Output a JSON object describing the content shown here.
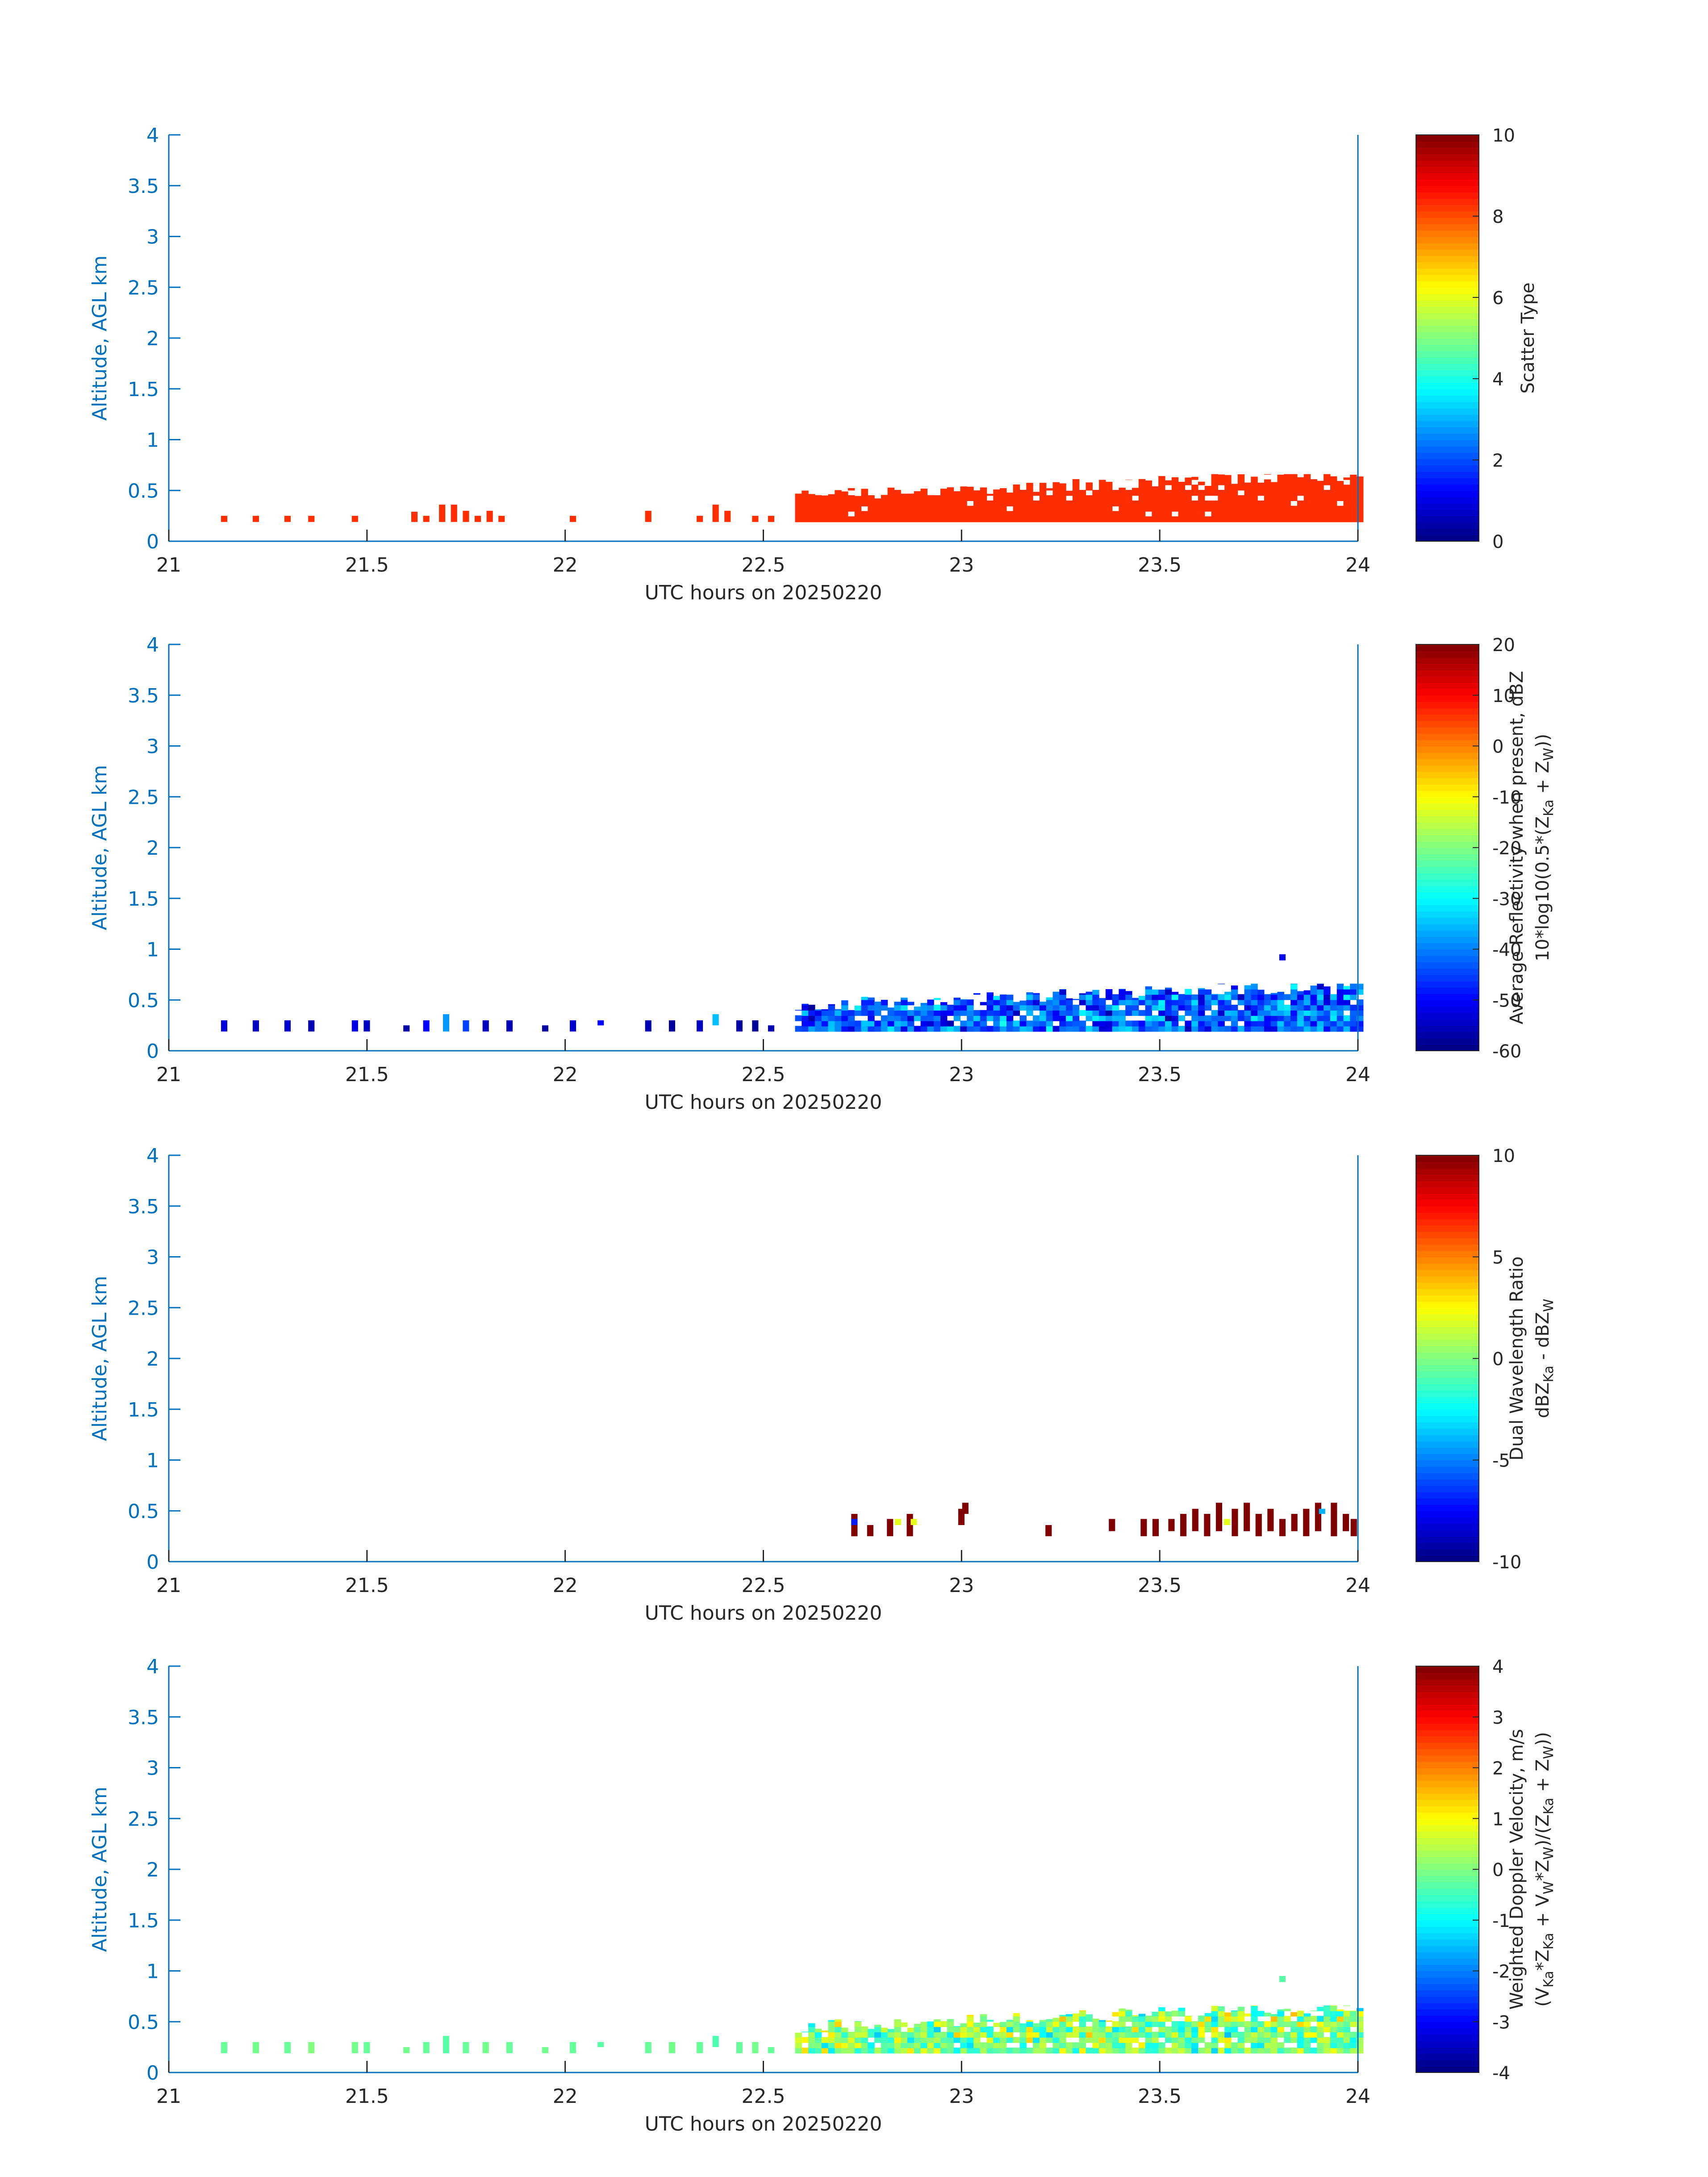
{
  "chart_data": [
    {
      "type": "heatmap",
      "xlabel": "UTC hours on 20250220",
      "ylabel": "Altitude, AGL km",
      "xlim": [
        21,
        24
      ],
      "ylim": [
        0,
        4
      ],
      "xticks": [
        "21",
        "21.5",
        "22",
        "22.5",
        "23",
        "23.5",
        "24"
      ],
      "yticks": [
        "0",
        "0.5",
        "1",
        "1.5",
        "2",
        "2.5",
        "3",
        "3.5",
        "4"
      ],
      "colorbar": {
        "label_lines": [
          "Scatter Type"
        ],
        "min": 0,
        "max": 10,
        "ticks": [
          "0",
          "2",
          "4",
          "6",
          "8",
          "10"
        ]
      },
      "fields": [
        {
          "t": 21.14,
          "z0": 0.19,
          "z1": 0.25,
          "v": 8.3
        },
        {
          "t": 21.22,
          "z0": 0.19,
          "z1": 0.25,
          "v": 8.3
        },
        {
          "t": 21.3,
          "z0": 0.19,
          "z1": 0.25,
          "v": 8.3
        },
        {
          "t": 21.36,
          "z0": 0.19,
          "z1": 0.25,
          "v": 8.3
        },
        {
          "t": 21.47,
          "z0": 0.19,
          "z1": 0.25,
          "v": 8.3
        },
        {
          "t": 21.62,
          "z0": 0.19,
          "z1": 0.29,
          "v": 8.3
        },
        {
          "t": 21.65,
          "z0": 0.19,
          "z1": 0.25,
          "v": 8.3
        },
        {
          "t": 21.69,
          "z0": 0.19,
          "z1": 0.36,
          "v": 8.3
        },
        {
          "t": 21.72,
          "z0": 0.19,
          "z1": 0.36,
          "v": 8.3
        },
        {
          "t": 21.75,
          "z0": 0.19,
          "z1": 0.3,
          "v": 8.3
        },
        {
          "t": 21.78,
          "z0": 0.19,
          "z1": 0.25,
          "v": 8.3
        },
        {
          "t": 21.81,
          "z0": 0.19,
          "z1": 0.3,
          "v": 8.3
        },
        {
          "t": 21.84,
          "z0": 0.19,
          "z1": 0.25,
          "v": 8.3
        },
        {
          "t": 22.02,
          "z0": 0.19,
          "z1": 0.25,
          "v": 8.3
        },
        {
          "t": 22.21,
          "z0": 0.19,
          "z1": 0.3,
          "v": 8.3
        },
        {
          "t": 22.34,
          "z0": 0.19,
          "z1": 0.25,
          "v": 8.3
        },
        {
          "t": 22.38,
          "z0": 0.19,
          "z1": 0.36,
          "v": 8.3
        },
        {
          "t": 22.41,
          "z0": 0.19,
          "z1": 0.3,
          "v": 8.3
        },
        {
          "t": 22.48,
          "z0": 0.19,
          "z1": 0.25,
          "v": 8.3
        },
        {
          "t": 22.52,
          "z0": 0.19,
          "z1": 0.25,
          "v": 8.3
        }
      ],
      "dense_region": {
        "t0": 22.58,
        "t1": 24.0,
        "z_base": 0.19,
        "top_min": 0.36,
        "top_max": 0.66,
        "v_min": 8.3,
        "v_max": 8.3
      }
    },
    {
      "type": "heatmap",
      "xlabel": "UTC hours on 20250220",
      "ylabel": "Altitude, AGL km",
      "xlim": [
        21,
        24
      ],
      "ylim": [
        0,
        4
      ],
      "xticks": [
        "21",
        "21.5",
        "22",
        "22.5",
        "23",
        "23.5",
        "24"
      ],
      "yticks": [
        "0",
        "0.5",
        "1",
        "1.5",
        "2",
        "2.5",
        "3",
        "3.5",
        "4"
      ],
      "colorbar": {
        "label_lines": [
          "Average Reflectivity when present, dBZ",
          "10*log10(0.5*(Z",
          "Ka",
          " + Z",
          "W",
          "))"
        ],
        "min": -60,
        "max": 20,
        "ticks": [
          "-60",
          "-50",
          "-40",
          "-30",
          "-20",
          "-10",
          "0",
          "10",
          "20"
        ]
      },
      "fields": [
        {
          "t": 21.14,
          "z0": 0.19,
          "z1": 0.3,
          "v": -53
        },
        {
          "t": 21.22,
          "z0": 0.19,
          "z1": 0.3,
          "v": -55
        },
        {
          "t": 21.3,
          "z0": 0.19,
          "z1": 0.3,
          "v": -54
        },
        {
          "t": 21.36,
          "z0": 0.19,
          "z1": 0.3,
          "v": -56
        },
        {
          "t": 21.47,
          "z0": 0.19,
          "z1": 0.3,
          "v": -52
        },
        {
          "t": 21.5,
          "z0": 0.19,
          "z1": 0.3,
          "v": -55
        },
        {
          "t": 21.6,
          "z0": 0.19,
          "z1": 0.25,
          "v": -57
        },
        {
          "t": 21.65,
          "z0": 0.19,
          "z1": 0.3,
          "v": -50
        },
        {
          "t": 21.7,
          "z0": 0.19,
          "z1": 0.36,
          "v": -38
        },
        {
          "t": 21.75,
          "z0": 0.19,
          "z1": 0.3,
          "v": -45
        },
        {
          "t": 21.8,
          "z0": 0.19,
          "z1": 0.3,
          "v": -55
        },
        {
          "t": 21.86,
          "z0": 0.19,
          "z1": 0.3,
          "v": -56
        },
        {
          "t": 21.95,
          "z0": 0.19,
          "z1": 0.25,
          "v": -57
        },
        {
          "t": 22.02,
          "z0": 0.19,
          "z1": 0.3,
          "v": -54
        },
        {
          "t": 22.09,
          "z0": 0.25,
          "z1": 0.3,
          "v": -50
        },
        {
          "t": 22.21,
          "z0": 0.19,
          "z1": 0.3,
          "v": -56
        },
        {
          "t": 22.27,
          "z0": 0.19,
          "z1": 0.3,
          "v": -58
        },
        {
          "t": 22.34,
          "z0": 0.19,
          "z1": 0.3,
          "v": -55
        },
        {
          "t": 22.38,
          "z0": 0.25,
          "z1": 0.36,
          "v": -35
        },
        {
          "t": 22.44,
          "z0": 0.19,
          "z1": 0.3,
          "v": -57
        },
        {
          "t": 22.48,
          "z0": 0.19,
          "z1": 0.3,
          "v": -58
        },
        {
          "t": 22.52,
          "z0": 0.19,
          "z1": 0.25,
          "v": -56
        },
        {
          "t": 23.81,
          "z0": 0.89,
          "z1": 0.95,
          "v": -50
        }
      ],
      "dense_region": {
        "t0": 22.58,
        "t1": 24.0,
        "z_base": 0.19,
        "top_min": 0.36,
        "top_max": 0.66,
        "v_min": -58,
        "v_max": -28
      }
    },
    {
      "type": "heatmap",
      "xlabel": "UTC hours on 20250220",
      "ylabel": "Altitude, AGL km",
      "xlim": [
        21,
        24
      ],
      "ylim": [
        0,
        4
      ],
      "xticks": [
        "21",
        "21.5",
        "22",
        "22.5",
        "23",
        "23.5",
        "24"
      ],
      "yticks": [
        "0",
        "0.5",
        "1",
        "1.5",
        "2",
        "2.5",
        "3",
        "3.5",
        "4"
      ],
      "colorbar": {
        "label_lines": [
          "Dual Wavelength Ratio",
          "dBZ",
          "Ka",
          " - dBZ",
          "W",
          ""
        ],
        "min": -10,
        "max": 10,
        "ticks": [
          "-10",
          "-5",
          "0",
          "5",
          "10"
        ]
      },
      "fields": [
        {
          "t": 22.73,
          "z0": 0.25,
          "z1": 0.47,
          "v": 10
        },
        {
          "t": 22.73,
          "z0": 0.36,
          "z1": 0.42,
          "v": -7
        },
        {
          "t": 22.77,
          "z0": 0.25,
          "z1": 0.36,
          "v": 10
        },
        {
          "t": 22.82,
          "z0": 0.25,
          "z1": 0.42,
          "v": 10
        },
        {
          "t": 22.84,
          "z0": 0.36,
          "z1": 0.42,
          "v": 2
        },
        {
          "t": 22.87,
          "z0": 0.25,
          "z1": 0.47,
          "v": 10
        },
        {
          "t": 22.88,
          "z0": 0.36,
          "z1": 0.42,
          "v": 2
        },
        {
          "t": 23.0,
          "z0": 0.36,
          "z1": 0.52,
          "v": 10
        },
        {
          "t": 23.01,
          "z0": 0.47,
          "z1": 0.58,
          "v": 10
        },
        {
          "t": 23.22,
          "z0": 0.25,
          "z1": 0.36,
          "v": 10
        },
        {
          "t": 23.38,
          "z0": 0.3,
          "z1": 0.42,
          "v": 10
        },
        {
          "t": 23.46,
          "z0": 0.25,
          "z1": 0.42,
          "v": 10
        },
        {
          "t": 23.49,
          "z0": 0.25,
          "z1": 0.42,
          "v": 10
        },
        {
          "t": 23.53,
          "z0": 0.3,
          "z1": 0.42,
          "v": 10
        },
        {
          "t": 23.56,
          "z0": 0.25,
          "z1": 0.47,
          "v": 10
        },
        {
          "t": 23.59,
          "z0": 0.3,
          "z1": 0.52,
          "v": 10
        },
        {
          "t": 23.62,
          "z0": 0.25,
          "z1": 0.47,
          "v": 10
        },
        {
          "t": 23.65,
          "z0": 0.3,
          "z1": 0.58,
          "v": 10
        },
        {
          "t": 23.67,
          "z0": 0.36,
          "z1": 0.42,
          "v": 2
        },
        {
          "t": 23.69,
          "z0": 0.25,
          "z1": 0.52,
          "v": 10
        },
        {
          "t": 23.72,
          "z0": 0.3,
          "z1": 0.58,
          "v": 10
        },
        {
          "t": 23.75,
          "z0": 0.25,
          "z1": 0.47,
          "v": 10
        },
        {
          "t": 23.78,
          "z0": 0.3,
          "z1": 0.52,
          "v": 10
        },
        {
          "t": 23.81,
          "z0": 0.25,
          "z1": 0.42,
          "v": 10
        },
        {
          "t": 23.84,
          "z0": 0.3,
          "z1": 0.47,
          "v": 10
        },
        {
          "t": 23.87,
          "z0": 0.25,
          "z1": 0.52,
          "v": 10
        },
        {
          "t": 23.9,
          "z0": 0.3,
          "z1": 0.58,
          "v": 10
        },
        {
          "t": 23.91,
          "z0": 0.47,
          "z1": 0.52,
          "v": -4
        },
        {
          "t": 23.94,
          "z0": 0.25,
          "z1": 0.58,
          "v": 10
        },
        {
          "t": 23.97,
          "z0": 0.3,
          "z1": 0.47,
          "v": 10
        },
        {
          "t": 23.99,
          "z0": 0.25,
          "z1": 0.42,
          "v": 10
        }
      ],
      "dense_region": null
    },
    {
      "type": "heatmap",
      "xlabel": "UTC hours on 20250220",
      "ylabel": "Altitude, AGL km",
      "xlim": [
        21,
        24
      ],
      "ylim": [
        0,
        4
      ],
      "xticks": [
        "21",
        "21.5",
        "22",
        "22.5",
        "23",
        "23.5",
        "24"
      ],
      "yticks": [
        "0",
        "0.5",
        "1",
        "1.5",
        "2",
        "2.5",
        "3",
        "3.5",
        "4"
      ],
      "colorbar": {
        "label_lines": [
          "Weighted Doppler Velocity, m/s",
          "(V",
          "Ka",
          "*Z",
          "Ka",
          " + V",
          "W",
          "*Z",
          "W",
          ")/(Z",
          "Ka",
          " + Z",
          "W",
          "))"
        ],
        "min": -4,
        "max": 4,
        "ticks": [
          "-4",
          "-3",
          "-2",
          "-1",
          "0",
          "1",
          "2",
          "3",
          "4"
        ]
      },
      "fields": [
        {
          "t": 21.14,
          "z0": 0.19,
          "z1": 0.3,
          "v": -0.2
        },
        {
          "t": 21.22,
          "z0": 0.19,
          "z1": 0.3,
          "v": -0.1
        },
        {
          "t": 21.3,
          "z0": 0.19,
          "z1": 0.3,
          "v": -0.2
        },
        {
          "t": 21.36,
          "z0": 0.19,
          "z1": 0.3,
          "v": 0.0
        },
        {
          "t": 21.47,
          "z0": 0.19,
          "z1": 0.3,
          "v": -0.1
        },
        {
          "t": 21.5,
          "z0": 0.19,
          "z1": 0.3,
          "v": -0.2
        },
        {
          "t": 21.6,
          "z0": 0.19,
          "z1": 0.25,
          "v": -0.1
        },
        {
          "t": 21.65,
          "z0": 0.19,
          "z1": 0.3,
          "v": -0.2
        },
        {
          "t": 21.7,
          "z0": 0.19,
          "z1": 0.36,
          "v": -0.3
        },
        {
          "t": 21.75,
          "z0": 0.19,
          "z1": 0.3,
          "v": -0.2
        },
        {
          "t": 21.8,
          "z0": 0.19,
          "z1": 0.3,
          "v": -0.1
        },
        {
          "t": 21.86,
          "z0": 0.19,
          "z1": 0.3,
          "v": -0.2
        },
        {
          "t": 21.95,
          "z0": 0.19,
          "z1": 0.25,
          "v": -0.1
        },
        {
          "t": 22.02,
          "z0": 0.19,
          "z1": 0.3,
          "v": -0.2
        },
        {
          "t": 22.09,
          "z0": 0.25,
          "z1": 0.3,
          "v": -0.3
        },
        {
          "t": 22.21,
          "z0": 0.19,
          "z1": 0.3,
          "v": -0.2
        },
        {
          "t": 22.27,
          "z0": 0.19,
          "z1": 0.3,
          "v": -0.1
        },
        {
          "t": 22.34,
          "z0": 0.19,
          "z1": 0.3,
          "v": -0.2
        },
        {
          "t": 22.38,
          "z0": 0.25,
          "z1": 0.36,
          "v": -0.4
        },
        {
          "t": 22.44,
          "z0": 0.19,
          "z1": 0.3,
          "v": -0.2
        },
        {
          "t": 22.48,
          "z0": 0.19,
          "z1": 0.3,
          "v": -0.1
        },
        {
          "t": 22.52,
          "z0": 0.19,
          "z1": 0.25,
          "v": -0.2
        },
        {
          "t": 23.81,
          "z0": 0.89,
          "z1": 0.95,
          "v": -0.3
        }
      ],
      "dense_region": {
        "t0": 22.58,
        "t1": 24.0,
        "z_base": 0.19,
        "top_min": 0.36,
        "top_max": 0.66,
        "v_min": -1.6,
        "v_max": 1.6
      }
    }
  ]
}
